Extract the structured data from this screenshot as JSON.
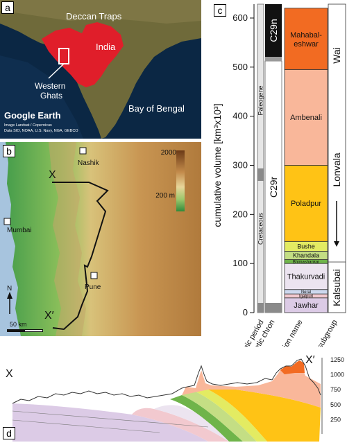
{
  "panel_a": {
    "letter": "a",
    "labels": {
      "traps": "Deccan Traps",
      "country": "India",
      "ghats_line1": "Western",
      "ghats_line2": "Ghats",
      "bay": "Bay of Bengal"
    },
    "logo_text": "Google Earth",
    "credit_line1": "Image Landsat / Copernicus",
    "credit_line2": "Data SIO, NOAA, U.S. Navy, NGA, GEBCO",
    "colors": {
      "ocean": "#0b2744",
      "land": "#6f6a3a",
      "traps": "#e01e2a"
    }
  },
  "panel_b": {
    "letter": "b",
    "cities": [
      {
        "name": "Nashik"
      },
      {
        "name": "Mumbai"
      },
      {
        "name": "Pune"
      }
    ],
    "profile_start": "X",
    "profile_end": "X′",
    "north_label": "N",
    "scale_label": "50 km",
    "colorbar_max": "2000",
    "colorbar_mid": "200 m"
  },
  "panel_c": {
    "letter": "c",
    "y_axis_label": "cumulative volume [km³x10³]",
    "y_ticks": [
      "0",
      "100",
      "200",
      "300",
      "400",
      "500",
      "600"
    ],
    "periods": [
      "Cretaceous",
      "Paleogene"
    ],
    "chrons": [
      "C29r",
      "C29n"
    ],
    "subgroups": [
      "Kalsubai",
      "Lonvala",
      "Wai"
    ],
    "column_labels": [
      "geologic period",
      "magnetic chron",
      "formation name",
      "subgroup"
    ],
    "formations": [
      {
        "name": "Jawhar",
        "bottom": 0,
        "top": 30,
        "color": "#dccbe6"
      },
      {
        "name": "Igatpuri",
        "bottom": 30,
        "top": 38,
        "color": "#f2c9cf"
      },
      {
        "name": "Neral",
        "bottom": 38,
        "top": 47,
        "color": "#cdd8ee"
      },
      {
        "name": "Thakurvadi",
        "bottom": 47,
        "top": 100,
        "color": "#ece4f0"
      },
      {
        "name": "Bhimashankar",
        "bottom": 100,
        "top": 108,
        "color": "#6fb44a"
      },
      {
        "name": "Khandala",
        "bottom": 108,
        "top": 125,
        "color": "#c4de84"
      },
      {
        "name": "Bushe",
        "bottom": 125,
        "top": 145,
        "color": "#e3eb62"
      },
      {
        "name": "Poladpur",
        "bottom": 145,
        "top": 300,
        "color": "#ffc315"
      },
      {
        "name": "Ambenali",
        "bottom": 300,
        "top": 495,
        "color": "#f9b79a"
      },
      {
        "name": "Mahabal-eshwar",
        "bottom": 495,
        "top": 620,
        "color": "#f26b22"
      }
    ]
  },
  "panel_d": {
    "letter": "d",
    "x_start": "X",
    "x_end": "X′",
    "elevation_ticks": [
      "250",
      "500",
      "750",
      "1000",
      "1250"
    ]
  }
}
